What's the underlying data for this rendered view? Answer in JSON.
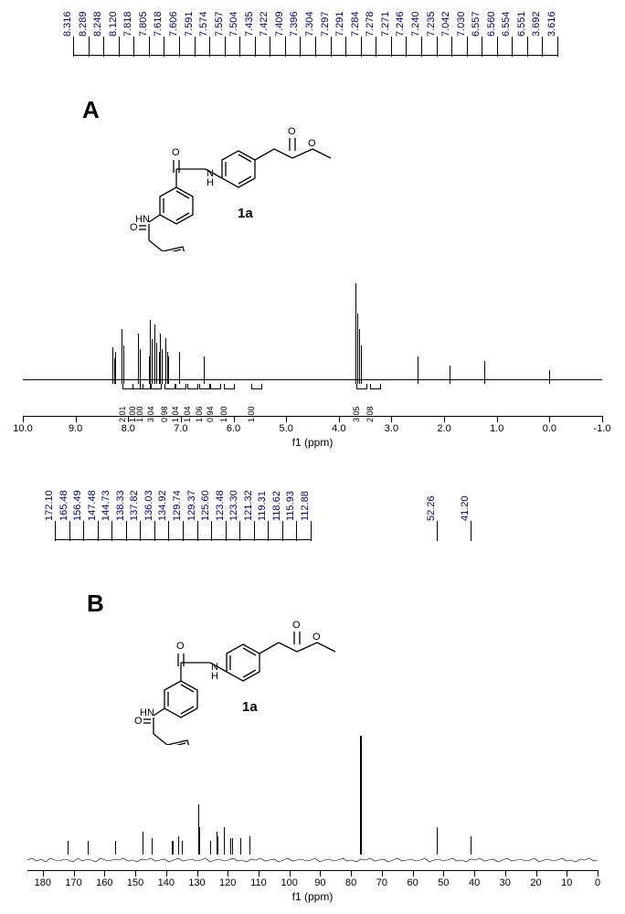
{
  "panelA": {
    "label": "A",
    "compound": "1a",
    "axis": {
      "min": -1.0,
      "max": 10.0,
      "title": "f1 (ppm)",
      "ticks": [
        10.0,
        9.0,
        8.0,
        7.0,
        6.0,
        5.0,
        4.0,
        3.0,
        2.0,
        1.0,
        0.0,
        -1.0
      ]
    },
    "peak_labels": [
      "8.316",
      "8.289",
      "8.248",
      "8.120",
      "7.818",
      "7.805",
      "7.618",
      "7.606",
      "7.591",
      "7.574",
      "7.557",
      "7.504",
      "7.435",
      "7.422",
      "7.409",
      "7.396",
      "7.304",
      "7.297",
      "7.291",
      "7.284",
      "7.278",
      "7.271",
      "7.246",
      "7.240",
      "7.235",
      "7.042",
      "7.030",
      "6.557",
      "6.560",
      "6.554",
      "6.551",
      "3.692",
      "3.616"
    ],
    "peak_label_color": "#000080",
    "integrals": [
      "2.01",
      "1.00",
      "1.00",
      "3.04",
      "0.98",
      "1.04",
      "1.04",
      "1.06",
      "0.94",
      "1.00",
      "1.00",
      "3.05",
      "2.08"
    ],
    "peak_positions_ppm": [
      8.3,
      8.25,
      8.12,
      7.81,
      7.6,
      7.58,
      7.5,
      7.42,
      7.4,
      7.29,
      7.24,
      7.03,
      6.56,
      3.69,
      3.62,
      2.5,
      1.9,
      1.24,
      0.0
    ],
    "peak_heights": [
      40,
      35,
      60,
      55,
      30,
      70,
      65,
      35,
      55,
      50,
      30,
      35,
      30,
      110,
      60,
      30,
      20,
      25,
      15
    ]
  },
  "panelB": {
    "label": "B",
    "compound": "1a",
    "axis": {
      "min": 0,
      "max": 185,
      "title": "f1 (ppm)",
      "ticks": [
        180,
        170,
        160,
        150,
        140,
        130,
        120,
        110,
        100,
        90,
        80,
        70,
        60,
        50,
        40,
        30,
        20,
        10,
        0
      ]
    },
    "peak_labels_left": [
      "172.10",
      "165.48",
      "156.49",
      "147.48",
      "144.73",
      "138.33",
      "137.82",
      "136.03",
      "134.92",
      "129.74",
      "129.37",
      "125.60",
      "123.48",
      "123.30",
      "121.32",
      "119.31",
      "118.62",
      "115.93",
      "112.88"
    ],
    "peak_labels_right": [
      "52.26",
      "41.20"
    ],
    "peak_label_color": "#000080",
    "solvent_ppm": 77.0,
    "peak_positions_ppm": [
      172.1,
      165.5,
      156.5,
      147.5,
      144.7,
      138.3,
      137.8,
      136.0,
      134.9,
      129.7,
      129.4,
      125.6,
      123.5,
      123.3,
      121.3,
      119.3,
      118.6,
      115.9,
      112.9,
      77.0,
      52.3,
      41.2
    ],
    "peak_heights": [
      15,
      15,
      15,
      25,
      18,
      15,
      15,
      20,
      15,
      55,
      30,
      15,
      25,
      20,
      30,
      18,
      18,
      18,
      20,
      130,
      30,
      20
    ]
  },
  "colors": {
    "text": "#000000",
    "peak_label": "#000080",
    "line": "#000000",
    "background": "#ffffff"
  }
}
